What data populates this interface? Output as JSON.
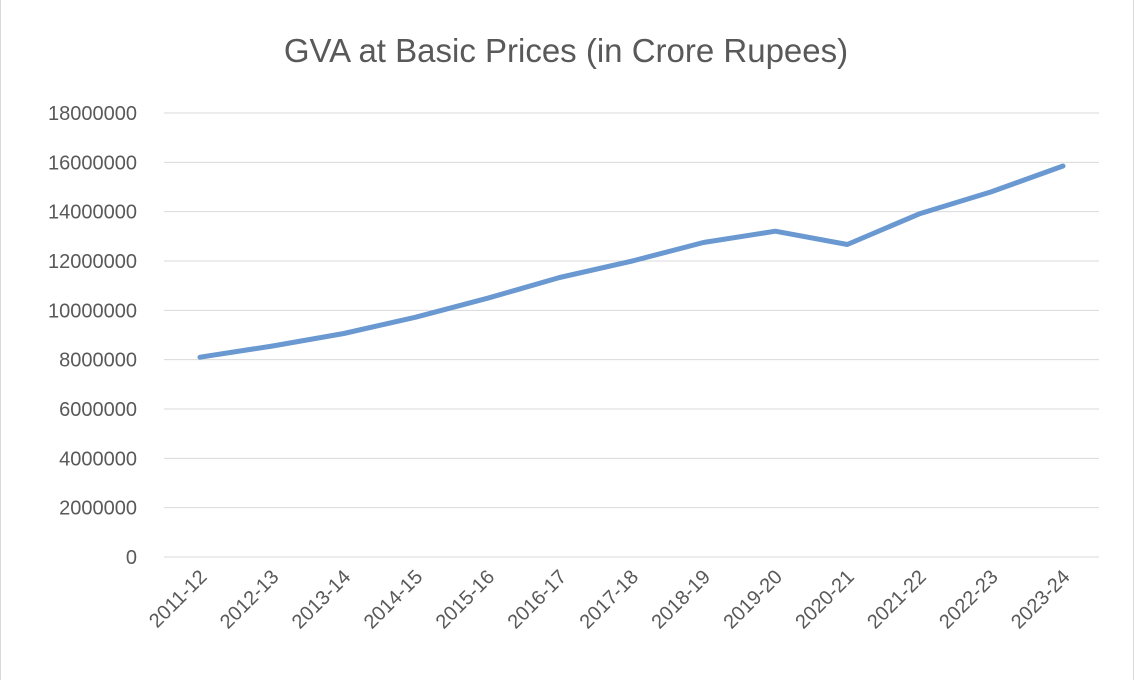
{
  "chart_data": {
    "type": "line",
    "title": "GVA at Basic Prices (in Crore Rupees)",
    "xlabel": "",
    "ylabel": "",
    "categories": [
      "2011-12",
      "2012-13",
      "2013-14",
      "2014-15",
      "2015-16",
      "2016-17",
      "2017-18",
      "2018-19",
      "2019-20",
      "2020-21",
      "2021-22",
      "2022-23",
      "2023-24"
    ],
    "series": [
      {
        "values": [
          8100000,
          8550000,
          9060000,
          9720000,
          10490000,
          11330000,
          11990000,
          12750000,
          13210000,
          12670000,
          13910000,
          14800000,
          15850000
        ]
      }
    ],
    "ylim": [
      0,
      18000000
    ],
    "yticks": [
      0,
      2000000,
      4000000,
      6000000,
      8000000,
      10000000,
      12000000,
      14000000,
      16000000,
      18000000
    ],
    "ytick_labels": [
      "0",
      "2000000",
      "4000000",
      "6000000",
      "8000000",
      "10000000",
      "12000000",
      "14000000",
      "16000000",
      "18000000"
    ],
    "grid": "horizontal",
    "legend": "none",
    "colors": {
      "series": "#6a98d0",
      "grid": "#d9d9d9",
      "text": "#595959"
    }
  }
}
